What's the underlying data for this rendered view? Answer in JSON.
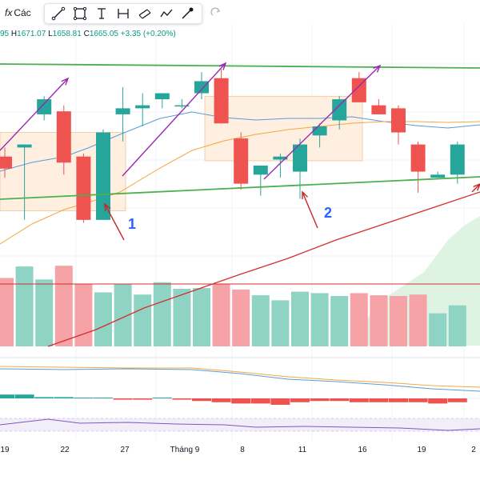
{
  "toolbar": {
    "fx_label": "fx",
    "indicators_label": "Các",
    "tools": [
      "trend-line-icon",
      "rectangle-icon",
      "text-tool-icon",
      "measure-icon",
      "parallel-channel-icon",
      "path-icon",
      "brush-icon"
    ],
    "redo_icon": "redo-icon"
  },
  "ohlc": {
    "open_fragment": "95",
    "high_label": "H",
    "high": "1671.07",
    "low_label": "L",
    "low": "1658.81",
    "close_label": "C",
    "close": "1665.05",
    "change": "+3.35 (+0.20%)"
  },
  "colors": {
    "up": "#26a69a",
    "down": "#ef5350",
    "trend_line": "#4caf50",
    "arrow": "#9c27b0",
    "annotation_arrow": "#c62828",
    "ma_short": "#5b9bd5",
    "ma_long": "#f4a742",
    "ma_volume": "#d32f2f",
    "box_fill": "#fde8d4",
    "volume_area": "#d7f0dc"
  },
  "annotations": [
    "1",
    "2"
  ],
  "chart_data": {
    "type": "candlestick",
    "x_tick_labels": [
      "19",
      "22",
      "27",
      "Tháng 9",
      "8",
      "11",
      "16",
      "19",
      "2"
    ],
    "candles": [
      {
        "o": 1669,
        "h": 1672,
        "l": 1662,
        "c": 1665
      },
      {
        "o": 1672,
        "h": 1673,
        "l": 1648,
        "c": 1673
      },
      {
        "o": 1683,
        "h": 1689,
        "l": 1681,
        "c": 1688
      },
      {
        "o": 1684,
        "h": 1686,
        "l": 1663,
        "c": 1667
      },
      {
        "o": 1669,
        "h": 1670,
        "l": 1647,
        "c": 1648
      },
      {
        "o": 1648,
        "h": 1678,
        "l": 1648,
        "c": 1677
      },
      {
        "o": 1683,
        "h": 1692,
        "l": 1674,
        "c": 1685
      },
      {
        "o": 1685,
        "h": 1690,
        "l": 1679,
        "c": 1686
      },
      {
        "o": 1688,
        "h": 1690,
        "l": 1685,
        "c": 1690
      },
      {
        "o": 1686,
        "h": 1688,
        "l": 1685,
        "c": 1686
      },
      {
        "o": 1690,
        "h": 1697,
        "l": 1688,
        "c": 1694
      },
      {
        "o": 1695,
        "h": 1698,
        "l": 1680,
        "c": 1680
      },
      {
        "o": 1675,
        "h": 1677,
        "l": 1658,
        "c": 1660
      },
      {
        "o": 1663,
        "h": 1666,
        "l": 1656,
        "c": 1666
      },
      {
        "o": 1668,
        "h": 1670,
        "l": 1662,
        "c": 1669
      },
      {
        "o": 1664,
        "h": 1675,
        "l": 1655,
        "c": 1673
      },
      {
        "o": 1676,
        "h": 1680,
        "l": 1672,
        "c": 1679
      },
      {
        "o": 1681,
        "h": 1689,
        "l": 1678,
        "c": 1688
      },
      {
        "o": 1695,
        "h": 1697,
        "l": 1687,
        "c": 1687
      },
      {
        "o": 1686,
        "h": 1688,
        "l": 1683,
        "c": 1683
      },
      {
        "o": 1685,
        "h": 1686,
        "l": 1673,
        "c": 1677
      },
      {
        "o": 1673,
        "h": 1674,
        "l": 1657,
        "c": 1664
      },
      {
        "o": 1662,
        "h": 1664,
        "l": 1662,
        "c": 1663
      },
      {
        "o": 1663,
        "h": 1674,
        "l": 1660,
        "c": 1673
      }
    ],
    "volume": [
      95,
      111,
      93,
      112,
      87,
      75,
      87,
      72,
      89,
      80,
      81,
      87,
      79,
      71,
      64,
      76,
      74,
      70,
      74,
      71,
      70,
      72,
      46,
      57
    ],
    "macd_histogram": [
      3,
      3,
      1,
      1,
      0,
      0,
      -1,
      -1,
      0,
      -1,
      -2,
      -3,
      -4,
      -4,
      -5,
      -3,
      -2,
      -2,
      -3,
      -3,
      -3,
      -3,
      -4,
      -3
    ]
  }
}
